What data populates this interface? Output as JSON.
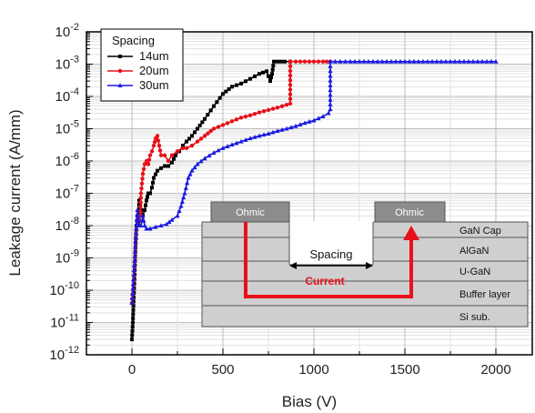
{
  "chart_data": {
    "type": "line",
    "title": "",
    "xlabel": "Bias (V)",
    "ylabel": "Leakage current (A/mm)",
    "xlim": [
      -250,
      2200
    ],
    "ylim_log10": [
      -12,
      -2
    ],
    "y_scale": "log",
    "grid": true,
    "legend_position": "top-left",
    "x_ticks": [
      "0",
      "500",
      "1000",
      "1500",
      "2000"
    ],
    "y_tick_mantissa": "10",
    "y_tick_exponents": [
      "-2",
      "-3",
      "-4",
      "-5",
      "-6",
      "-7",
      "-8",
      "-9",
      "-10",
      "-11",
      "-12"
    ],
    "legend": {
      "title": "Spacing",
      "entries": [
        "14um",
        "20um",
        "30um"
      ]
    },
    "series": [
      {
        "name": "14um",
        "color": "#000000",
        "marker": "square",
        "points": [
          [
            0,
            3e-12
          ],
          [
            5,
            1e-11
          ],
          [
            10,
            6e-11
          ],
          [
            15,
            3e-10
          ],
          [
            20,
            3e-09
          ],
          [
            25,
            1e-08
          ],
          [
            30,
            2e-08
          ],
          [
            35,
            1e-08
          ],
          [
            40,
            6e-08
          ],
          [
            50,
            3e-08
          ],
          [
            60,
            2e-08
          ],
          [
            70,
            3e-08
          ],
          [
            80,
            6e-08
          ],
          [
            90,
            1e-07
          ],
          [
            100,
            1e-07
          ],
          [
            110,
            1.5e-07
          ],
          [
            120,
            3e-07
          ],
          [
            140,
            5e-07
          ],
          [
            160,
            6e-07
          ],
          [
            180,
            7e-07
          ],
          [
            200,
            7e-07
          ],
          [
            220,
            9e-07
          ],
          [
            240,
            1.5e-06
          ],
          [
            260,
            2e-06
          ],
          [
            280,
            3e-06
          ],
          [
            300,
            4e-06
          ],
          [
            330,
            6e-06
          ],
          [
            360,
            1e-05
          ],
          [
            400,
            2e-05
          ],
          [
            450,
            5e-05
          ],
          [
            500,
            0.00012
          ],
          [
            550,
            0.0002
          ],
          [
            600,
            0.00025
          ],
          [
            650,
            0.00035
          ],
          [
            700,
            0.0005
          ],
          [
            740,
            0.0006
          ],
          [
            760,
            0.0003
          ],
          [
            770,
            0.0005
          ],
          [
            780,
            0.0012
          ],
          [
            800,
            0.0012
          ],
          [
            840,
            0.0012
          ],
          [
            870,
            0.0012
          ]
        ]
      },
      {
        "name": "20um",
        "color": "#e8101a",
        "marker": "circle",
        "points": [
          [
            0,
            4e-11
          ],
          [
            10,
            2e-10
          ],
          [
            20,
            2e-09
          ],
          [
            30,
            2e-08
          ],
          [
            40,
            1e-08
          ],
          [
            45,
            2e-08
          ],
          [
            50,
            1e-07
          ],
          [
            60,
            4e-07
          ],
          [
            70,
            8e-07
          ],
          [
            80,
            1e-06
          ],
          [
            90,
            8e-07
          ],
          [
            100,
            1.5e-06
          ],
          [
            110,
            2e-06
          ],
          [
            120,
            3e-06
          ],
          [
            130,
            5e-06
          ],
          [
            140,
            6e-06
          ],
          [
            150,
            3e-06
          ],
          [
            160,
            1.5e-06
          ],
          [
            180,
            1.5e-06
          ],
          [
            200,
            1e-06
          ],
          [
            220,
            1.5e-06
          ],
          [
            250,
            2e-06
          ],
          [
            280,
            2.5e-06
          ],
          [
            300,
            2.5e-06
          ],
          [
            330,
            3e-06
          ],
          [
            360,
            4e-06
          ],
          [
            400,
            6e-06
          ],
          [
            450,
            1e-05
          ],
          [
            500,
            1.3e-05
          ],
          [
            550,
            1.7e-05
          ],
          [
            600,
            2.2e-05
          ],
          [
            650,
            2.6e-05
          ],
          [
            700,
            3.2e-05
          ],
          [
            750,
            3.8e-05
          ],
          [
            800,
            4.5e-05
          ],
          [
            850,
            5.5e-05
          ],
          [
            870,
            6e-05
          ],
          [
            870,
            0.0012
          ],
          [
            900,
            0.0012
          ],
          [
            1000,
            0.0012
          ],
          [
            1050,
            0.0012
          ],
          [
            1090,
            0.0012
          ]
        ]
      },
      {
        "name": "30um",
        "color": "#1a1ae0",
        "marker": "triangle",
        "points": [
          [
            0,
            4e-11
          ],
          [
            10,
            3e-10
          ],
          [
            20,
            3e-09
          ],
          [
            30,
            3e-08
          ],
          [
            40,
            1e-08
          ],
          [
            50,
            1e-08
          ],
          [
            60,
            2e-08
          ],
          [
            70,
            1e-08
          ],
          [
            80,
            8e-09
          ],
          [
            100,
            8e-09
          ],
          [
            130,
            9e-09
          ],
          [
            160,
            1e-08
          ],
          [
            190,
            1.1e-08
          ],
          [
            220,
            1.5e-08
          ],
          [
            250,
            2e-08
          ],
          [
            270,
            4e-08
          ],
          [
            290,
            1e-07
          ],
          [
            310,
            3e-07
          ],
          [
            330,
            5e-07
          ],
          [
            360,
            8e-07
          ],
          [
            400,
            1.2e-06
          ],
          [
            450,
            1.8e-06
          ],
          [
            500,
            2.5e-06
          ],
          [
            550,
            3.2e-06
          ],
          [
            600,
            4e-06
          ],
          [
            650,
            5e-06
          ],
          [
            700,
            6e-06
          ],
          [
            750,
            7e-06
          ],
          [
            800,
            8.5e-06
          ],
          [
            850,
            1e-05
          ],
          [
            900,
            1.2e-05
          ],
          [
            950,
            1.5e-05
          ],
          [
            1000,
            1.8e-05
          ],
          [
            1050,
            2.4e-05
          ],
          [
            1080,
            3e-05
          ],
          [
            1090,
            4e-05
          ],
          [
            1090,
            0.0012
          ],
          [
            1200,
            0.0012
          ],
          [
            1400,
            0.0012
          ],
          [
            1600,
            0.0012
          ],
          [
            1800,
            0.0012
          ],
          [
            2000,
            0.0012
          ]
        ]
      }
    ],
    "inset": {
      "ohmic_labels": [
        "Ohmic",
        "Ohmic"
      ],
      "layers": [
        "GaN Cap",
        "AlGaN",
        "U-GaN",
        "Buffer layer",
        "Si sub."
      ],
      "spacing_label": "Spacing",
      "current_label": "Current",
      "colors": {
        "layer_fill": "#cfcfcf",
        "contact_fill": "#8c8c8c",
        "current_arrow": "#e8101a"
      }
    }
  }
}
